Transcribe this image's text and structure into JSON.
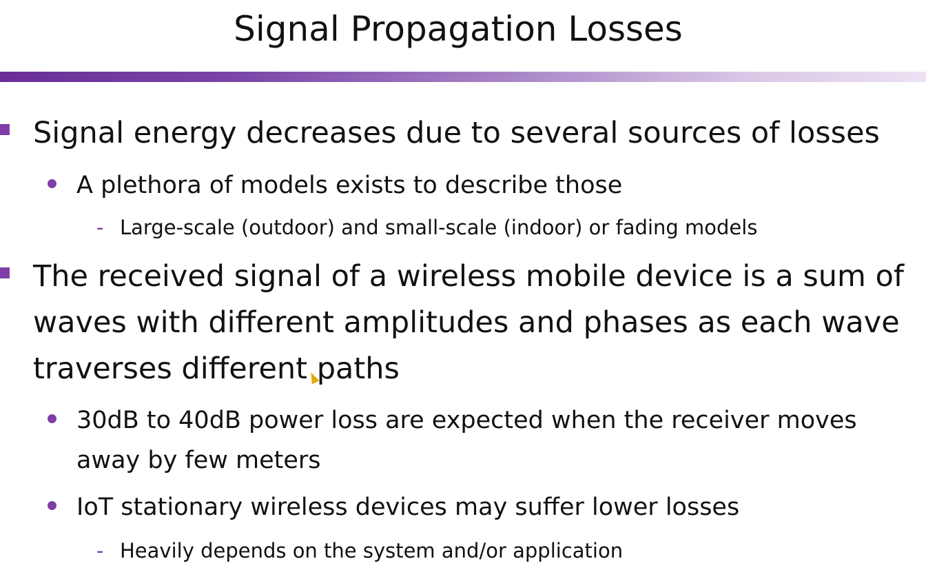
{
  "slide": {
    "title": "Signal Propagation Losses",
    "accent_color": "#7f3fa6",
    "bullets": [
      {
        "text": "Signal energy decreases due to several sources of losses",
        "sub": [
          {
            "text": "A plethora of models exists to describe those",
            "sub": [
              {
                "text": "Large-scale (outdoor) and small-scale (indoor) or fading models"
              }
            ]
          }
        ]
      },
      {
        "text": "The received signal of a wireless mobile device is a sum of waves with different amplitudes and phases as each wave traverses different paths",
        "sub": [
          {
            "text": "30dB to 40dB power loss are expected when the receiver moves away by few meters"
          },
          {
            "text": "IoT stationary wireless devices may suffer lower losses",
            "sub": [
              {
                "text": "Heavily depends on the system and/or application"
              }
            ]
          }
        ]
      }
    ]
  }
}
